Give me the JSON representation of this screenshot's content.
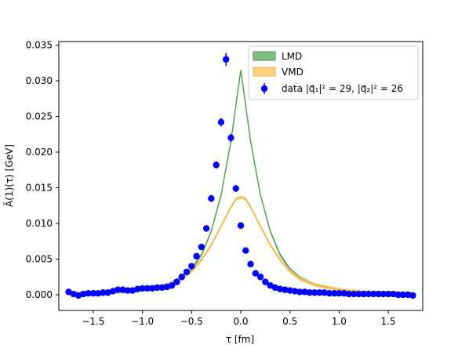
{
  "chart_data": {
    "type": "line",
    "xlabel": "τ [fm]",
    "ylabel": "Ã(1)(τ) [GeV]",
    "xlim": [
      -1.85,
      1.85
    ],
    "ylim": [
      -0.0022,
      0.0355
    ],
    "xticks": [
      -1.5,
      -1.0,
      -0.5,
      0.0,
      0.5,
      1.0,
      1.5
    ],
    "xtick_labels": [
      "−1.5",
      "−1.0",
      "−0.5",
      "0.0",
      "0.5",
      "1.0",
      "1.5"
    ],
    "yticks": [
      0.0,
      0.005,
      0.01,
      0.015,
      0.02,
      0.025,
      0.03,
      0.035
    ],
    "ytick_labels": [
      "0.000",
      "0.005",
      "0.010",
      "0.015",
      "0.020",
      "0.025",
      "0.030",
      "0.035"
    ],
    "grid": false,
    "legend_position": "top-right",
    "legend": [
      "LMD",
      "VMD",
      "data |q⃗₁|² = 29, |q⃗₂|² = 26"
    ],
    "colors": {
      "lmd_fill": "#7fbf7f",
      "lmd_edge": "#4c9a4c",
      "vmd_fill": "#ffd27f",
      "vmd_edge": "#f0b040",
      "data": "#0000ff"
    },
    "series": [
      {
        "name": "LMD",
        "kind": "band",
        "x": [
          -1.75,
          -1.5,
          -1.25,
          -1.0,
          -0.75,
          -0.6,
          -0.5,
          -0.4,
          -0.3,
          -0.2,
          -0.1,
          -0.05,
          0.0,
          0.05,
          0.1,
          0.2,
          0.3,
          0.4,
          0.5,
          0.6,
          0.75,
          1.0,
          1.25,
          1.5,
          1.75
        ],
        "values": [
          0.0002,
          0.0003,
          0.0004,
          0.0007,
          0.0014,
          0.0024,
          0.0036,
          0.0056,
          0.0089,
          0.014,
          0.0215,
          0.0265,
          0.0315,
          0.0265,
          0.0215,
          0.014,
          0.0089,
          0.0056,
          0.0036,
          0.0024,
          0.0014,
          0.0007,
          0.0004,
          0.0003,
          0.0002
        ]
      },
      {
        "name": "VMD",
        "kind": "band",
        "x": [
          -1.75,
          -1.5,
          -1.25,
          -1.0,
          -0.75,
          -0.6,
          -0.5,
          -0.4,
          -0.3,
          -0.2,
          -0.1,
          -0.05,
          0.0,
          0.05,
          0.1,
          0.2,
          0.3,
          0.4,
          0.5,
          0.6,
          0.75,
          1.0,
          1.25,
          1.5,
          1.75
        ],
        "values": [
          0.0002,
          0.0003,
          0.0004,
          0.0007,
          0.0014,
          0.0022,
          0.0033,
          0.0049,
          0.007,
          0.0096,
          0.0123,
          0.0134,
          0.0137,
          0.0134,
          0.0123,
          0.0096,
          0.007,
          0.0049,
          0.0033,
          0.0022,
          0.0014,
          0.0007,
          0.0004,
          0.0003,
          0.0002
        ]
      },
      {
        "name": "data |q⃗₁|² = 29, |q⃗₂|² = 26",
        "kind": "points",
        "x": [
          -1.75,
          -1.7,
          -1.65,
          -1.6,
          -1.55,
          -1.5,
          -1.45,
          -1.4,
          -1.35,
          -1.3,
          -1.25,
          -1.2,
          -1.15,
          -1.1,
          -1.05,
          -1.0,
          -0.95,
          -0.9,
          -0.85,
          -0.8,
          -0.75,
          -0.7,
          -0.65,
          -0.6,
          -0.55,
          -0.5,
          -0.45,
          -0.4,
          -0.35,
          -0.3,
          -0.25,
          -0.2,
          -0.15,
          -0.1,
          -0.05,
          0.0,
          0.05,
          0.1,
          0.15,
          0.2,
          0.25,
          0.3,
          0.35,
          0.4,
          0.45,
          0.5,
          0.55,
          0.6,
          0.65,
          0.7,
          0.75,
          0.8,
          0.85,
          0.9,
          0.95,
          1.0,
          1.05,
          1.1,
          1.15,
          1.2,
          1.25,
          1.3,
          1.35,
          1.4,
          1.45,
          1.5,
          1.55,
          1.6,
          1.65,
          1.7,
          1.75
        ],
        "values": [
          0.0004,
          0.0001,
          -0.0001,
          0.0001,
          0.0002,
          0.0002,
          0.0002,
          0.0003,
          0.0003,
          0.0005,
          0.0007,
          0.0007,
          0.0006,
          0.0006,
          0.0008,
          0.0009,
          0.0009,
          0.0009,
          0.001,
          0.001,
          0.0011,
          0.0013,
          0.0018,
          0.0025,
          0.0032,
          0.004,
          0.0054,
          0.0067,
          0.0093,
          0.0135,
          0.0182,
          0.0242,
          0.033,
          0.022,
          0.0149,
          0.0097,
          0.0062,
          0.0043,
          0.003,
          0.0025,
          0.0018,
          0.0013,
          0.001,
          0.0008,
          0.0007,
          0.0006,
          0.0005,
          0.0004,
          0.0004,
          0.0003,
          0.0003,
          0.0003,
          0.0003,
          0.0002,
          0.0002,
          0.0002,
          0.0002,
          0.0001,
          0.0001,
          0.0001,
          0.0001,
          0.0001,
          0.0001,
          0.0001,
          0.0001,
          0.0001,
          0.0001,
          0.0,
          0.0,
          0.0,
          -0.0001
        ],
        "errors": [
          0.0002,
          0.0002,
          0.0002,
          0.0002,
          0.0002,
          0.0002,
          0.0002,
          0.0002,
          0.0002,
          0.0002,
          0.0002,
          0.0002,
          0.0002,
          0.0002,
          0.0002,
          0.0002,
          0.0002,
          0.0002,
          0.0002,
          0.0002,
          0.0002,
          0.0002,
          0.0002,
          0.0002,
          0.0002,
          0.0002,
          0.0003,
          0.0003,
          0.0004,
          0.0005,
          0.0005,
          0.0006,
          0.0009,
          0.0006,
          0.0005,
          0.0004,
          0.0003,
          0.0003,
          0.0002,
          0.0002,
          0.0002,
          0.0002,
          0.0002,
          0.0002,
          0.0002,
          0.0002,
          0.0002,
          0.0002,
          0.0002,
          0.0002,
          0.0002,
          0.0002,
          0.0002,
          0.0002,
          0.0002,
          0.0002,
          0.0002,
          0.0002,
          0.0002,
          0.0002,
          0.0002,
          0.0002,
          0.0002,
          0.0002,
          0.0002,
          0.0002,
          0.0002,
          0.0002,
          0.0002,
          0.0002,
          0.0002
        ]
      }
    ]
  }
}
